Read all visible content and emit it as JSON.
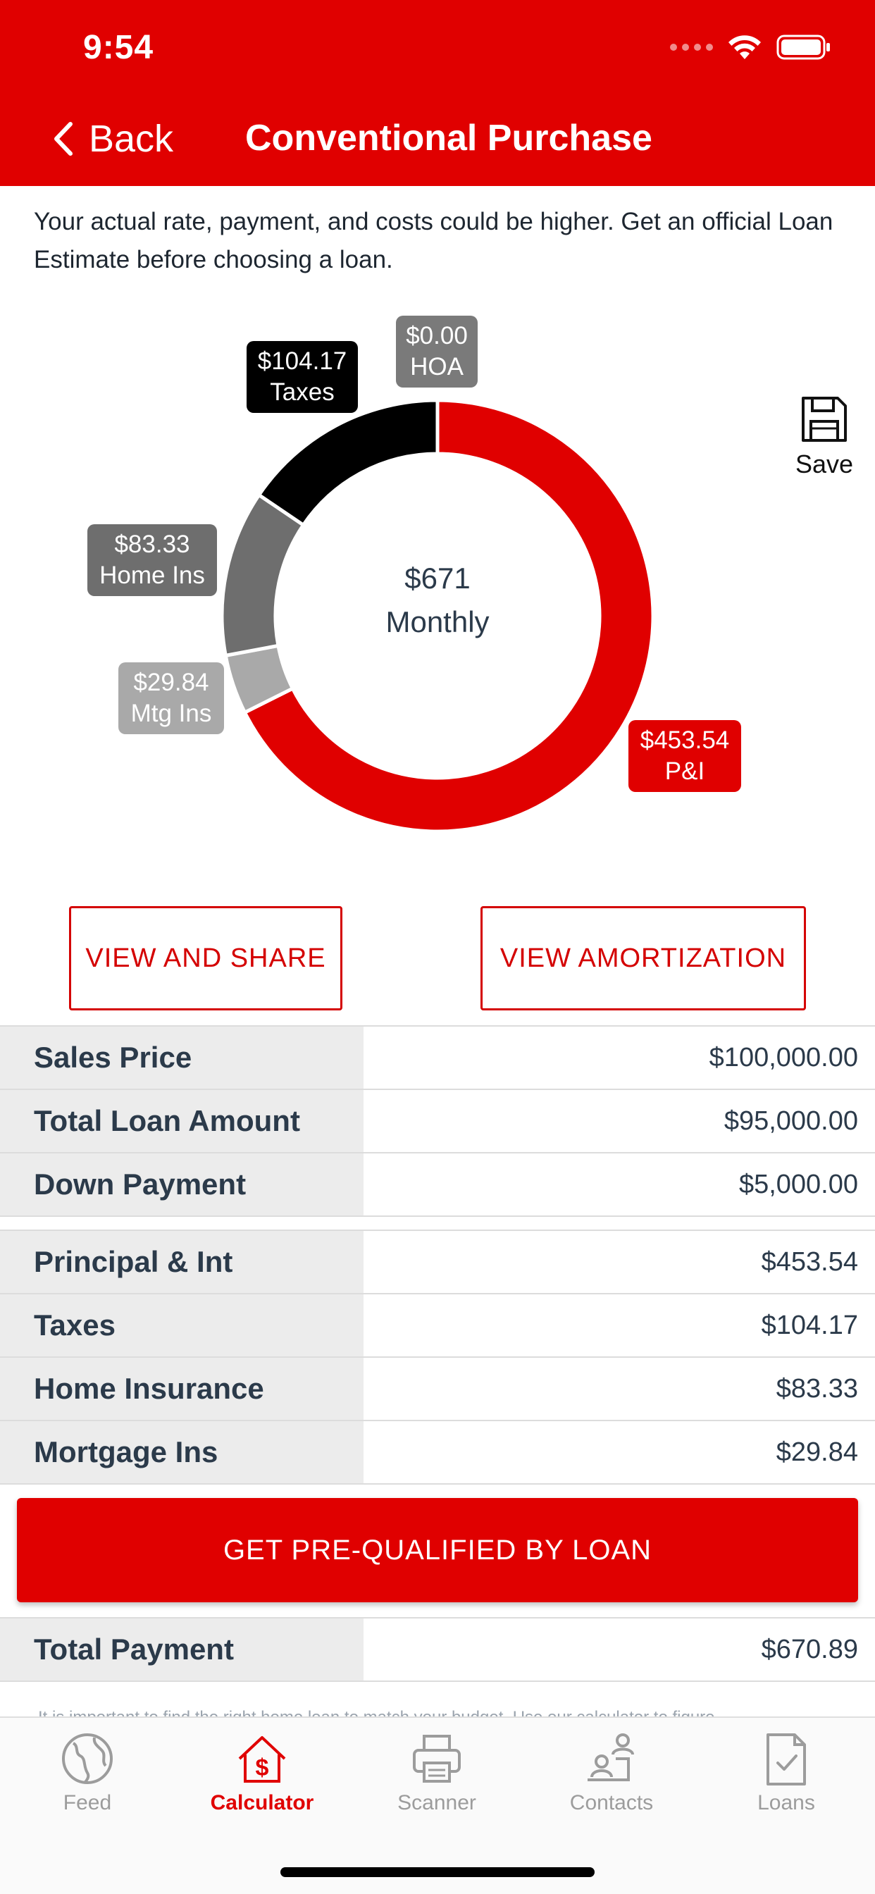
{
  "status_bar": {
    "time": "9:54"
  },
  "nav": {
    "back_label": "Back",
    "title": "Conventional Purchase"
  },
  "disclaimer": "Your actual rate, payment, and costs could be higher. Get an official Loan Estimate before choosing a loan.",
  "chart_data": {
    "type": "pie",
    "center_value": "$671",
    "center_label": "Monthly",
    "slices": [
      {
        "name": "P&I",
        "value": 453.54,
        "label": "$453.54",
        "color": "#e00000"
      },
      {
        "name": "Mtg Ins",
        "value": 29.84,
        "label": "$29.84",
        "color": "#a9a9a9"
      },
      {
        "name": "Home Ins",
        "value": 83.33,
        "label": "$83.33",
        "color": "#6e6e6e"
      },
      {
        "name": "Taxes",
        "value": 104.17,
        "label": "$104.17",
        "color": "#000000"
      },
      {
        "name": "HOA",
        "value": 0.0,
        "label": "$0.00",
        "color": "#7a7a7a"
      }
    ]
  },
  "save_label": "Save",
  "buttons": {
    "view_share": "VIEW AND SHARE",
    "view_amortization": "VIEW AMORTIZATION",
    "prequalify": "GET PRE-QUALIFIED BY LOAN"
  },
  "loan_rows": [
    {
      "label": "Sales Price",
      "value": "$100,000.00"
    },
    {
      "label": "Total Loan Amount",
      "value": "$95,000.00"
    },
    {
      "label": "Down Payment",
      "value": "$5,000.00"
    }
  ],
  "payment_rows": [
    {
      "label": "Principal & Int",
      "value": "$453.54"
    },
    {
      "label": "Taxes",
      "value": "$104.17"
    },
    {
      "label": "Home Insurance",
      "value": "$83.33"
    },
    {
      "label": "Mortgage Ins",
      "value": "$29.84"
    }
  ],
  "total": {
    "label": "Total Payment",
    "value": "$670.89"
  },
  "footnote": "It is important to find the right home loan to match your budget. Use our calculator to figure",
  "tabs": [
    {
      "label": "Feed",
      "icon": "globe-icon",
      "active": false
    },
    {
      "label": "Calculator",
      "icon": "calculator-house-icon",
      "active": true
    },
    {
      "label": "Scanner",
      "icon": "printer-icon",
      "active": false
    },
    {
      "label": "Contacts",
      "icon": "contacts-icon",
      "active": false
    },
    {
      "label": "Loans",
      "icon": "document-check-icon",
      "active": false
    }
  ],
  "colors": {
    "brand_red": "#e00000",
    "label_bg": "#ececec"
  }
}
